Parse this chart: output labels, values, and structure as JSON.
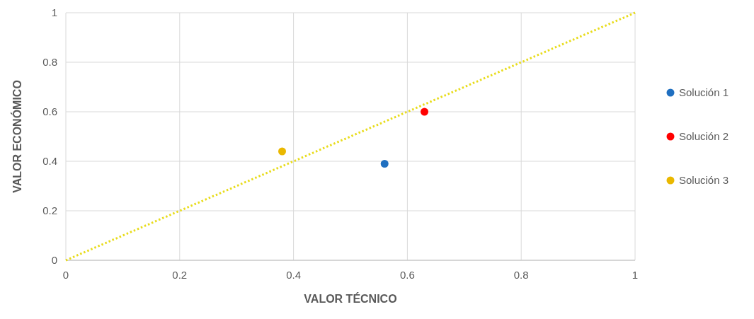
{
  "chart_data": {
    "type": "scatter",
    "xlabel": "VALOR TÉCNICO",
    "ylabel": "VALOR ECONÓMICO",
    "xlim": [
      0,
      1
    ],
    "ylim": [
      0,
      1
    ],
    "xticks": [
      0,
      0.2,
      0.4,
      0.6,
      0.8,
      1
    ],
    "yticks": [
      0,
      0.2,
      0.4,
      0.6,
      0.8,
      1
    ],
    "grid": true,
    "legend": "right",
    "marker": "circle",
    "series": [
      {
        "type": "line",
        "color": "#e8dc1c",
        "x": [
          0,
          1
        ],
        "values": [
          0,
          1
        ],
        "line_style": "dotted",
        "marker": "none"
      },
      {
        "name": "Solución 1",
        "color": "#1f6fc0",
        "x": [
          0.56
        ],
        "values": [
          0.39
        ]
      },
      {
        "name": "Solución 2",
        "color": "#ff0000",
        "x": [
          0.63
        ],
        "values": [
          0.6
        ]
      },
      {
        "name": "Solución 3",
        "color": "#eab800",
        "x": [
          0.38
        ],
        "values": [
          0.44
        ]
      }
    ]
  }
}
